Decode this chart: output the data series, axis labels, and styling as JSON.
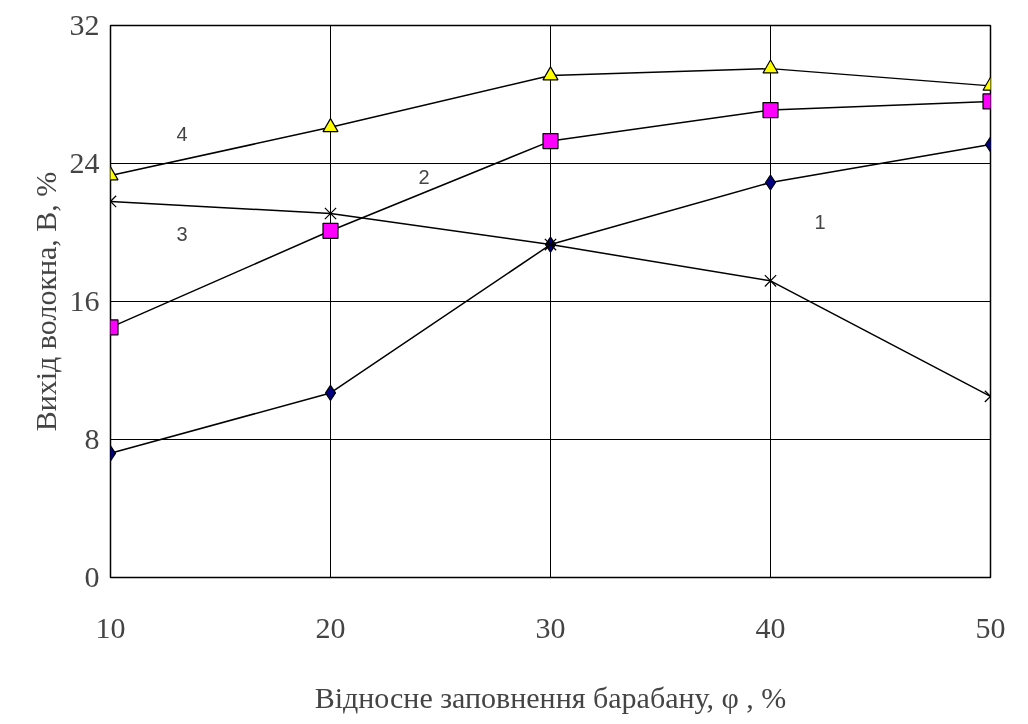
{
  "chart_data": {
    "type": "line",
    "xlabel": "Відносне заповнення барабану, φ , %",
    "ylabel": "Вихід волокна, В, %",
    "x": [
      10,
      20,
      30,
      40,
      50
    ],
    "series": [
      {
        "name": "1",
        "color": "#000080",
        "marker": "diamond",
        "values": [
          7.2,
          10.7,
          19.3,
          22.9,
          25.1
        ]
      },
      {
        "name": "2",
        "color": "#ff00ff",
        "marker": "square",
        "values": [
          14.5,
          20.1,
          25.3,
          27.1,
          27.6
        ]
      },
      {
        "name": "3",
        "color": "#000000",
        "marker": "cross",
        "values": [
          21.8,
          21.1,
          19.3,
          17.2,
          10.5
        ]
      },
      {
        "name": "4",
        "color": "#ffff00",
        "marker": "triangle",
        "values": [
          23.3,
          26.1,
          29.1,
          29.5,
          28.5
        ]
      }
    ],
    "xlim": [
      10,
      50
    ],
    "ylim": [
      0,
      32
    ],
    "xticks": [
      10,
      20,
      30,
      40,
      50
    ],
    "yticks": [
      0,
      8,
      16,
      24,
      32
    ],
    "grid": true
  }
}
